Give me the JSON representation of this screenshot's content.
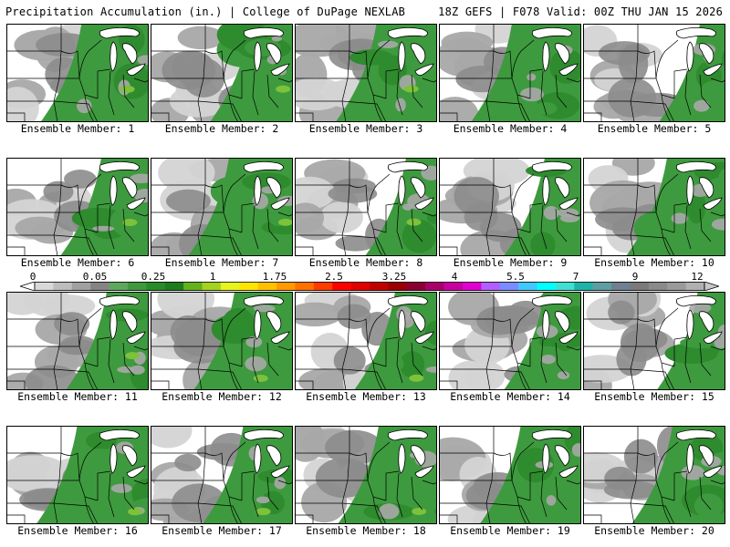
{
  "header": {
    "left_title": "Precipitation Accumulation (in.) | College of DuPage NEXLAB",
    "right_title": "18Z GEFS | F078 Valid: 00Z THU JAN 15 2026"
  },
  "colorbar": {
    "labels": [
      "0",
      "0.05",
      "0.25",
      "1",
      "1.75",
      "2.5",
      "3.25",
      "4",
      "5.5",
      "7",
      "9",
      "12"
    ],
    "colors": [
      "#d9d9d9",
      "#bdbdbd",
      "#a0a0a0",
      "#848484",
      "#5fa75f",
      "#3f9a3f",
      "#2b8b2b",
      "#1e7b1e",
      "#62b21e",
      "#a4d21e",
      "#e7f51e",
      "#ffe600",
      "#ffc000",
      "#ff9a00",
      "#ff7000",
      "#ff3c00",
      "#ff0000",
      "#e00000",
      "#c00000",
      "#9a0000",
      "#8b0030",
      "#a8006a",
      "#c800a0",
      "#e000d0",
      "#b060ff",
      "#7a8cff",
      "#40c8ff",
      "#00ffff",
      "#40e0d0",
      "#20b2aa",
      "#5f9ea0",
      "#708090",
      "#7a7a7a",
      "#8a8a8a",
      "#9a9a9a",
      "#b0b0b0"
    ]
  },
  "palette": {
    "light_gray": "#d4d4d4",
    "gray": "#a8a8a8",
    "dark_gray": "#8c8c8c",
    "green": "#3e9a3e",
    "dark_green": "#2e8b2e",
    "lime": "#7cc23a",
    "boundary": "#000000",
    "water": "#ffffff"
  },
  "panels": [
    {
      "caption": "Ensemble Member: 1",
      "coverage": 0.78,
      "west_gray": 0.55
    },
    {
      "caption": "Ensemble Member: 2",
      "coverage": 0.55,
      "west_gray": 0.35
    },
    {
      "caption": "Ensemble Member: 3",
      "coverage": 0.72,
      "west_gray": 0.5
    },
    {
      "caption": "Ensemble Member: 4",
      "coverage": 0.8,
      "west_gray": 0.5
    },
    {
      "caption": "Ensemble Member: 5",
      "coverage": 0.4,
      "west_gray": 0.25
    },
    {
      "caption": "Ensemble Member: 6",
      "coverage": 0.6,
      "west_gray": 0.55
    },
    {
      "caption": "Ensemble Member: 7",
      "coverage": 0.75,
      "west_gray": 0.55
    },
    {
      "caption": "Ensemble Member: 8",
      "coverage": 0.45,
      "west_gray": 0.4
    },
    {
      "caption": "Ensemble Member: 9",
      "coverage": 0.5,
      "west_gray": 0.5
    },
    {
      "caption": "Ensemble Member: 10",
      "coverage": 0.7,
      "west_gray": 0.55
    },
    {
      "caption": "Ensemble Member: 11",
      "coverage": 0.55,
      "west_gray": 0.3
    },
    {
      "caption": "Ensemble Member: 12",
      "coverage": 0.7,
      "west_gray": 0.5
    },
    {
      "caption": "Ensemble Member: 13",
      "coverage": 0.55,
      "west_gray": 0.45
    },
    {
      "caption": "Ensemble Member: 14",
      "coverage": 0.5,
      "west_gray": 0.4
    },
    {
      "caption": "Ensemble Member: 15",
      "coverage": 0.42,
      "west_gray": 0.4
    },
    {
      "caption": "Ensemble Member: 16",
      "coverage": 0.82,
      "west_gray": 0.55
    },
    {
      "caption": "Ensemble Member: 17",
      "coverage": 0.62,
      "west_gray": 0.5
    },
    {
      "caption": "Ensemble Member: 18",
      "coverage": 0.7,
      "west_gray": 0.55
    },
    {
      "caption": "Ensemble Member: 19",
      "coverage": 0.72,
      "west_gray": 0.5
    },
    {
      "caption": "Ensemble Member: 20",
      "coverage": 0.65,
      "west_gray": 0.45
    }
  ]
}
